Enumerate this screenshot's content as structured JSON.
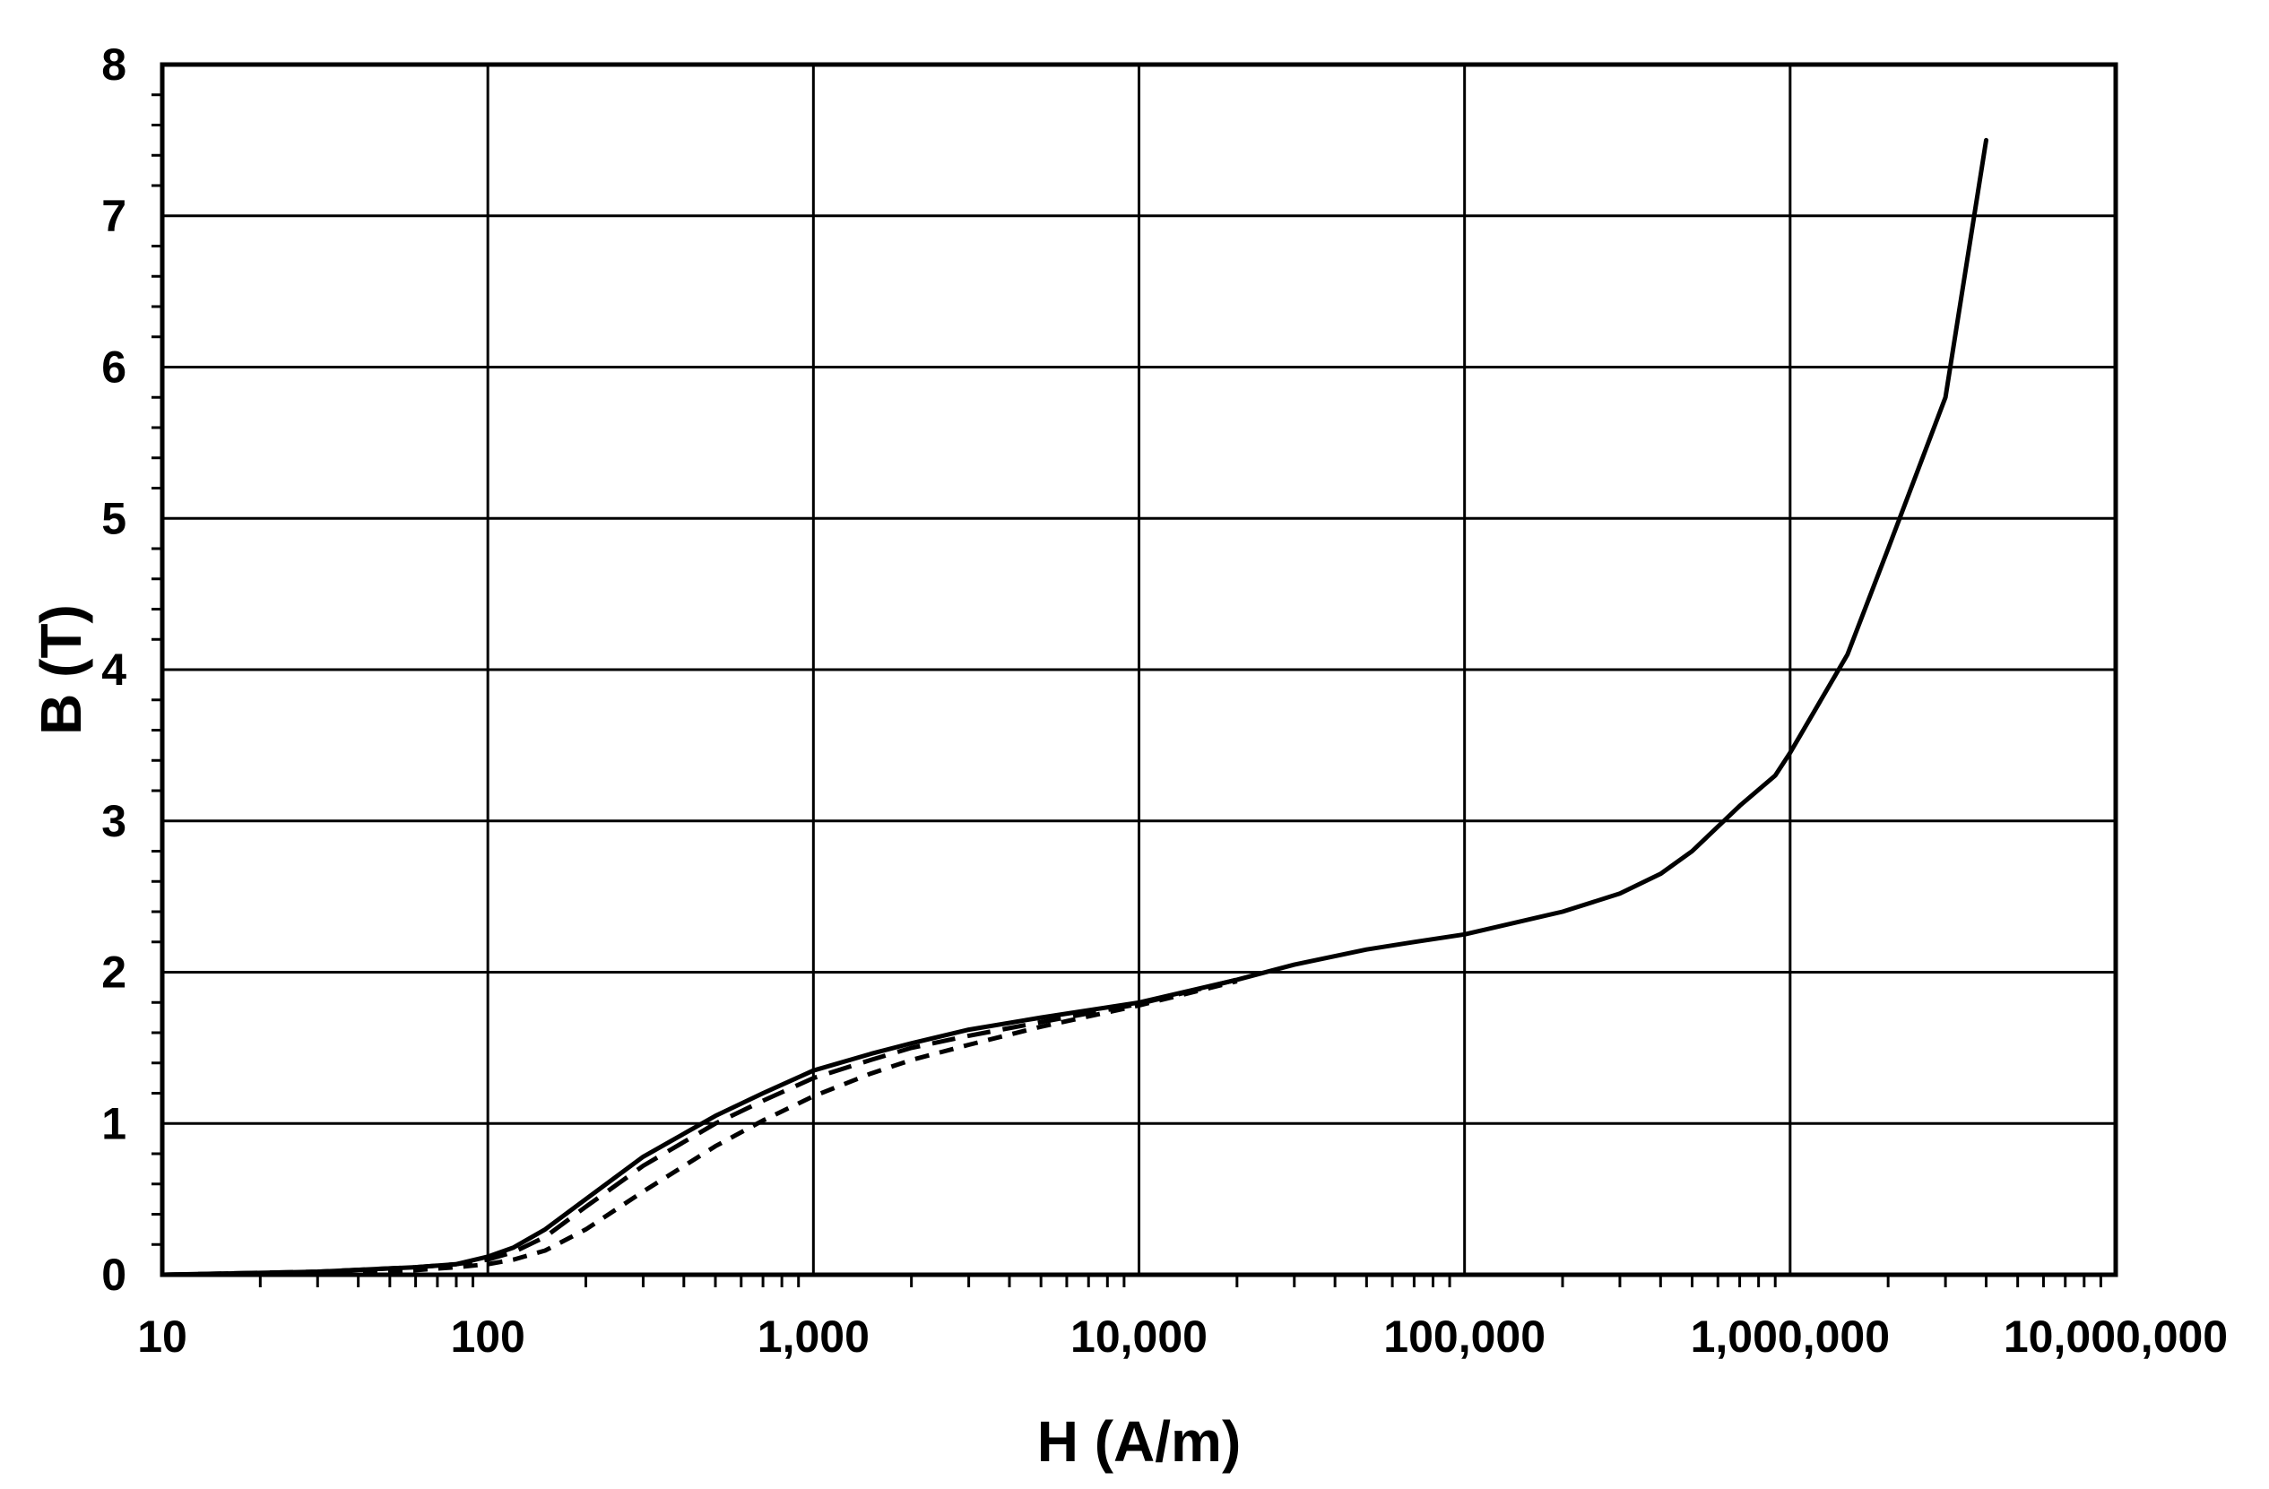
{
  "chart_data": {
    "type": "line",
    "title": "",
    "xlabel": "H (A/m)",
    "ylabel": "B (T)",
    "x_scale": "log",
    "xlim": [
      10,
      10000000
    ],
    "ylim": [
      0,
      8
    ],
    "x_tick_labels": [
      "10",
      "100",
      "1,000",
      "10,000",
      "100,000",
      "1,000,000",
      "10,000,000"
    ],
    "y_tick_labels": [
      "0",
      "1",
      "2",
      "3",
      "4",
      "5",
      "6",
      "7",
      "8"
    ],
    "grid": true,
    "legend": "none",
    "series": [
      {
        "line_style": "solid",
        "color": "#000000",
        "x": [
          10,
          30,
          60,
          80,
          100,
          120,
          150,
          200,
          300,
          500,
          700,
          1000,
          1500,
          2000,
          3000,
          5000,
          10000,
          20000,
          30000,
          50000,
          70000,
          100000,
          200000,
          300000,
          400000,
          500000,
          700000,
          900000,
          1000000,
          1500000,
          2000000,
          3000000,
          4000000
        ],
        "y": [
          0,
          0.02,
          0.05,
          0.07,
          0.12,
          0.18,
          0.3,
          0.5,
          0.78,
          1.05,
          1.2,
          1.35,
          1.46,
          1.53,
          1.62,
          1.7,
          1.8,
          1.95,
          2.05,
          2.15,
          2.2,
          2.25,
          2.4,
          2.52,
          2.65,
          2.8,
          3.1,
          3.3,
          3.45,
          4.1,
          4.8,
          5.8,
          7.5
        ]
      },
      {
        "line_style": "dashed",
        "color": "#000000",
        "x": [
          10,
          30,
          60,
          80,
          100,
          120,
          150,
          200,
          300,
          500,
          700,
          1000,
          1500,
          2000,
          3000,
          5000,
          10000,
          20000
        ],
        "y": [
          0,
          0.02,
          0.05,
          0.07,
          0.1,
          0.15,
          0.25,
          0.45,
          0.72,
          1.0,
          1.15,
          1.3,
          1.42,
          1.5,
          1.58,
          1.67,
          1.79,
          1.95
        ]
      },
      {
        "line_style": "dashed",
        "color": "#000000",
        "x": [
          10,
          30,
          60,
          80,
          100,
          120,
          150,
          200,
          300,
          500,
          700,
          1000,
          1500,
          2000,
          3000,
          5000,
          10000,
          20000
        ],
        "y": [
          0,
          0.01,
          0.03,
          0.05,
          0.07,
          0.1,
          0.16,
          0.3,
          0.55,
          0.85,
          1.02,
          1.18,
          1.33,
          1.42,
          1.52,
          1.64,
          1.78,
          1.94
        ]
      }
    ]
  }
}
